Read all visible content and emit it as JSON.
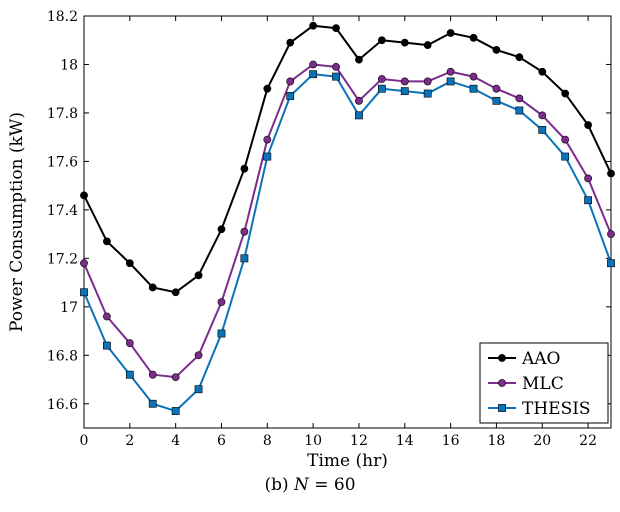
{
  "chart_data": {
    "type": "line",
    "xlabel": "Time (hr)",
    "ylabel": "Power Consumption (kW)",
    "xlim": [
      0,
      23
    ],
    "ylim": [
      16.5,
      18.2
    ],
    "xticks": [
      0,
      2,
      4,
      6,
      8,
      10,
      12,
      14,
      16,
      18,
      20,
      22
    ],
    "yticks": [
      16.6,
      16.8,
      17,
      17.2,
      17.4,
      17.6,
      17.8,
      18,
      18.2
    ],
    "ytick_labels": [
      "16.6",
      "16.8",
      "17",
      "17.2",
      "17.4",
      "17.6",
      "17.8",
      "18",
      "18.2"
    ],
    "grid": false,
    "legend_position": "bottom-right",
    "x": [
      0,
      1,
      2,
      3,
      4,
      5,
      6,
      7,
      8,
      9,
      10,
      11,
      12,
      13,
      14,
      15,
      16,
      17,
      18,
      19,
      20,
      21,
      22,
      23
    ],
    "series": [
      {
        "name": "AAO",
        "color": "#000000",
        "marker": "circle",
        "values": [
          17.46,
          17.27,
          17.18,
          17.08,
          17.06,
          17.13,
          17.32,
          17.57,
          17.9,
          18.09,
          18.16,
          18.15,
          18.02,
          18.1,
          18.09,
          18.08,
          18.13,
          18.11,
          18.06,
          18.03,
          17.97,
          17.88,
          17.75,
          17.55
        ]
      },
      {
        "name": "MLC",
        "color": "#7b2d8b",
        "marker": "circle",
        "values": [
          17.18,
          16.96,
          16.85,
          16.72,
          16.71,
          16.8,
          17.02,
          17.31,
          17.69,
          17.93,
          18.0,
          17.99,
          17.85,
          17.94,
          17.93,
          17.93,
          17.97,
          17.95,
          17.9,
          17.86,
          17.79,
          17.69,
          17.53,
          17.3
        ]
      },
      {
        "name": "THESIS",
        "color": "#0a73b8",
        "marker": "square",
        "values": [
          17.06,
          16.84,
          16.72,
          16.6,
          16.57,
          16.66,
          16.89,
          17.2,
          17.62,
          17.87,
          17.96,
          17.95,
          17.79,
          17.9,
          17.89,
          17.88,
          17.93,
          17.9,
          17.85,
          17.81,
          17.73,
          17.62,
          17.44,
          17.18
        ]
      }
    ]
  },
  "caption": {
    "prefix": "(b) ",
    "variable": "N",
    "suffix": " = 60"
  }
}
